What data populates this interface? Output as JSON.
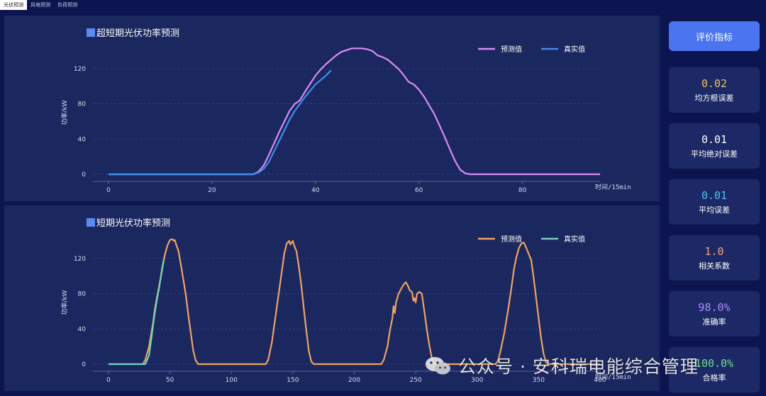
{
  "tabs": [
    {
      "label": "光伏预测",
      "active": true
    },
    {
      "label": "风电预测",
      "active": false
    },
    {
      "label": "负荷预测",
      "active": false
    }
  ],
  "chart_data": [
    {
      "type": "line",
      "title": "超短期光伏功率预测",
      "xlabel": "时间/15min",
      "ylabel": "功率/kW",
      "xlim": [
        0,
        95
      ],
      "ylim": [
        0,
        140
      ],
      "xticks": [
        0,
        20,
        40,
        60,
        80
      ],
      "yticks": [
        0,
        40,
        80,
        120
      ],
      "legend": "top-right",
      "series": [
        {
          "name": "预测值",
          "color": "#d98af5",
          "points": [
            [
              0,
              0
            ],
            [
              28,
              0
            ],
            [
              29,
              3
            ],
            [
              30,
              10
            ],
            [
              31,
              22
            ],
            [
              32,
              35
            ],
            [
              33,
              48
            ],
            [
              34,
              60
            ],
            [
              35,
              72
            ],
            [
              36,
              80
            ],
            [
              37,
              84
            ],
            [
              38,
              94
            ],
            [
              39,
              103
            ],
            [
              40,
              112
            ],
            [
              41,
              119
            ],
            [
              42,
              125
            ],
            [
              43,
              130
            ],
            [
              44,
              135
            ],
            [
              45,
              139
            ],
            [
              46,
              141
            ],
            [
              47,
              143
            ],
            [
              48,
              143
            ],
            [
              49,
              143
            ],
            [
              50,
              142
            ],
            [
              51,
              140
            ],
            [
              52,
              135
            ],
            [
              53,
              133
            ],
            [
              54,
              130
            ],
            [
              55,
              125
            ],
            [
              56,
              120
            ],
            [
              57,
              113
            ],
            [
              58,
              105
            ],
            [
              59,
              102
            ],
            [
              60,
              96
            ],
            [
              61,
              88
            ],
            [
              62,
              78
            ],
            [
              63,
              68
            ],
            [
              64,
              55
            ],
            [
              65,
              42
            ],
            [
              66,
              28
            ],
            [
              67,
              15
            ],
            [
              68,
              5
            ],
            [
              69,
              1
            ],
            [
              70,
              0
            ],
            [
              95,
              0
            ]
          ]
        },
        {
          "name": "真实值",
          "color": "#3d8ef0",
          "points": [
            [
              0,
              0
            ],
            [
              28,
              0
            ],
            [
              29,
              2
            ],
            [
              30,
              6
            ],
            [
              31,
              14
            ],
            [
              32,
              26
            ],
            [
              33,
              38
            ],
            [
              34,
              50
            ],
            [
              35,
              62
            ],
            [
              36,
              72
            ],
            [
              37,
              80
            ],
            [
              38,
              88
            ],
            [
              39,
              95
            ],
            [
              40,
              102
            ],
            [
              41,
              107
            ],
            [
              42,
              112
            ],
            [
              43,
              118
            ]
          ]
        }
      ]
    },
    {
      "type": "line",
      "title": "短期光伏功率预测",
      "xlabel": "时间/15min",
      "ylabel": "功率/kW",
      "xlim": [
        0,
        400
      ],
      "ylim": [
        0,
        140
      ],
      "xticks": [
        0,
        50,
        100,
        150,
        200,
        250,
        300,
        350,
        400
      ],
      "yticks": [
        0,
        40,
        80,
        120
      ],
      "legend": "top-right",
      "series": [
        {
          "name": "预测值",
          "color": "#f2a25c",
          "points": [
            [
              0,
              0
            ],
            [
              28,
              0
            ],
            [
              30,
              5
            ],
            [
              33,
              20
            ],
            [
              36,
              45
            ],
            [
              38,
              65
            ],
            [
              40,
              80
            ],
            [
              42,
              95
            ],
            [
              44,
              112
            ],
            [
              46,
              125
            ],
            [
              48,
              135
            ],
            [
              50,
              141
            ],
            [
              52,
              142
            ],
            [
              53,
              140
            ],
            [
              54,
              141
            ],
            [
              55,
              136
            ],
            [
              57,
              128
            ],
            [
              59,
              112
            ],
            [
              61,
              95
            ],
            [
              63,
              78
            ],
            [
              65,
              55
            ],
            [
              67,
              35
            ],
            [
              69,
              15
            ],
            [
              71,
              4
            ],
            [
              73,
              0
            ],
            [
              128,
              0
            ],
            [
              130,
              5
            ],
            [
              133,
              25
            ],
            [
              136,
              55
            ],
            [
              139,
              85
            ],
            [
              141,
              105
            ],
            [
              143,
              125
            ],
            [
              145,
              137
            ],
            [
              147,
              140
            ],
            [
              148,
              136
            ],
            [
              150,
              140
            ],
            [
              151,
              135
            ],
            [
              153,
              128
            ],
            [
              155,
              110
            ],
            [
              157,
              88
            ],
            [
              159,
              62
            ],
            [
              161,
              38
            ],
            [
              163,
              15
            ],
            [
              165,
              3
            ],
            [
              167,
              0
            ],
            [
              222,
              0
            ],
            [
              224,
              5
            ],
            [
              227,
              20
            ],
            [
              229,
              38
            ],
            [
              231,
              52
            ],
            [
              232,
              66
            ],
            [
              233,
              58
            ],
            [
              234,
              70
            ],
            [
              236,
              80
            ],
            [
              238,
              85
            ],
            [
              240,
              90
            ],
            [
              242,
              93
            ],
            [
              244,
              88
            ],
            [
              245,
              84
            ],
            [
              247,
              82
            ],
            [
              248,
              72
            ],
            [
              249,
              75
            ],
            [
              250,
              70
            ],
            [
              251,
              80
            ],
            [
              253,
              82
            ],
            [
              255,
              80
            ],
            [
              257,
              60
            ],
            [
              259,
              40
            ],
            [
              261,
              22
            ],
            [
              263,
              8
            ],
            [
              265,
              0
            ],
            [
              315,
              0
            ],
            [
              317,
              4
            ],
            [
              319,
              15
            ],
            [
              322,
              35
            ],
            [
              325,
              60
            ],
            [
              328,
              88
            ],
            [
              330,
              108
            ],
            [
              332,
              122
            ],
            [
              334,
              132
            ],
            [
              336,
              137
            ],
            [
              338,
              138
            ],
            [
              340,
              132
            ],
            [
              342,
              125
            ],
            [
              344,
              118
            ],
            [
              346,
              98
            ],
            [
              348,
              75
            ],
            [
              350,
              52
            ],
            [
              352,
              30
            ],
            [
              354,
              12
            ],
            [
              356,
              2
            ],
            [
              358,
              0
            ],
            [
              400,
              0
            ]
          ]
        },
        {
          "name": "真实值",
          "color": "#6cd3b8",
          "points": [
            [
              0,
              0
            ],
            [
              30,
              0
            ],
            [
              33,
              10
            ],
            [
              35,
              30
            ],
            [
              37,
              52
            ],
            [
              39,
              70
            ],
            [
              41,
              85
            ],
            [
              43,
              102
            ],
            [
              45,
              118
            ]
          ]
        }
      ]
    }
  ],
  "sidebar": {
    "button_label": "评价指标",
    "metrics": [
      {
        "value": "0.02",
        "label": "均方根误差",
        "color": "#e8c35a"
      },
      {
        "value": "0.01",
        "label": "平均绝对误差",
        "color": "#ffffff"
      },
      {
        "value": "0.01",
        "label": "平均误差",
        "color": "#4fc3ee"
      },
      {
        "value": "1.0",
        "label": "相关系数",
        "color": "#f3a27a"
      },
      {
        "value": "98.0%",
        "label": "准确率",
        "color": "#a98cf5"
      },
      {
        "value": "100.0%",
        "label": "合格率",
        "color": "#6fdc8c"
      }
    ]
  },
  "watermark": {
    "text": "公众号 · 安科瑞电能综合管理"
  }
}
